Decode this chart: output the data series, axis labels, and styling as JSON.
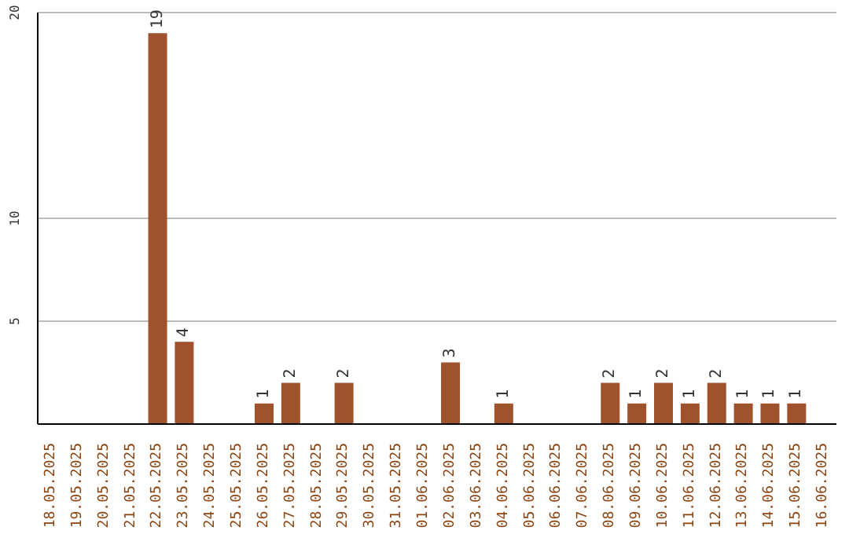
{
  "chart_data": {
    "type": "bar",
    "categories": [
      "18.05.2025",
      "19.05.2025",
      "20.05.2025",
      "21.05.2025",
      "22.05.2025",
      "23.05.2025",
      "24.05.2025",
      "25.05.2025",
      "26.05.2025",
      "27.05.2025",
      "28.05.2025",
      "29.05.2025",
      "30.05.2025",
      "31.05.2025",
      "01.06.2025",
      "02.06.2025",
      "03.06.2025",
      "04.06.2025",
      "05.06.2025",
      "06.06.2025",
      "07.06.2025",
      "08.06.2025",
      "09.06.2025",
      "10.06.2025",
      "11.06.2025",
      "12.06.2025",
      "13.06.2025",
      "14.06.2025",
      "15.06.2025",
      "16.06.2025"
    ],
    "values": [
      null,
      null,
      null,
      null,
      19,
      4,
      null,
      null,
      1,
      2,
      null,
      2,
      null,
      null,
      null,
      3,
      null,
      1,
      null,
      null,
      null,
      2,
      1,
      2,
      1,
      2,
      1,
      1,
      1,
      null
    ],
    "color": "#a0522d",
    "ylim": [
      0,
      20
    ],
    "yticks": [
      5,
      10,
      20
    ],
    "grid": "y",
    "data_labels": true
  }
}
